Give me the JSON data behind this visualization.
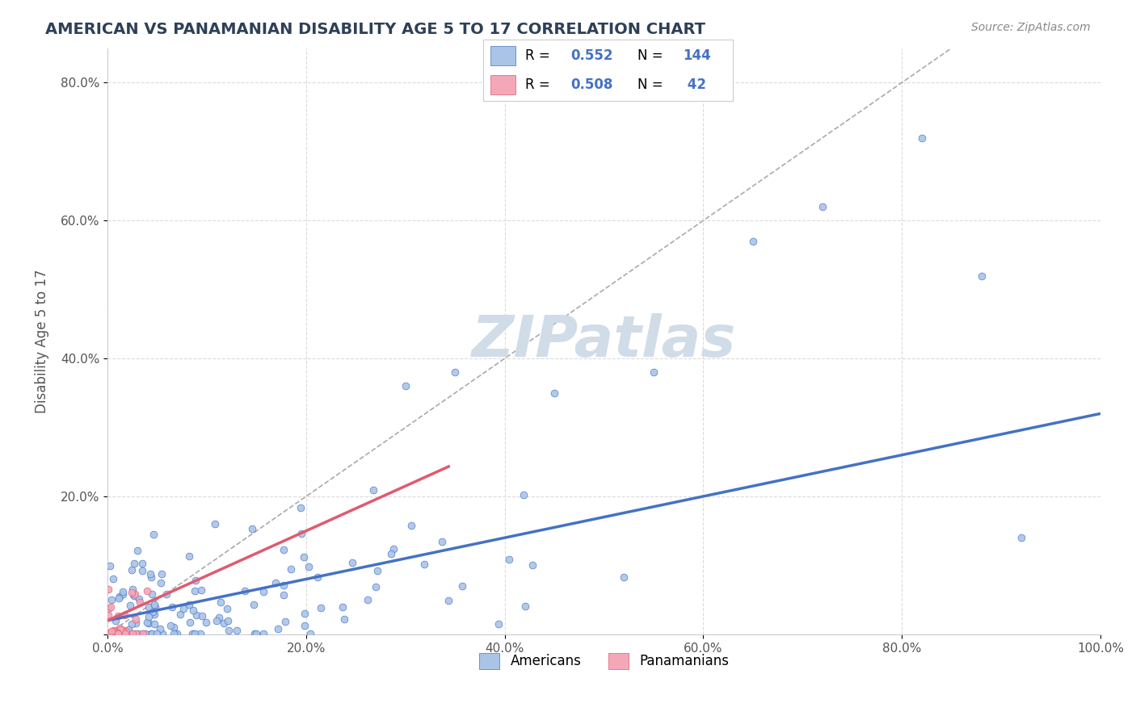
{
  "title": "AMERICAN VS PANAMANIAN DISABILITY AGE 5 TO 17 CORRELATION CHART",
  "source_text": "Source: ZipAtlas.com",
  "xlabel": "",
  "ylabel": "Disability Age 5 to 17",
  "xlim": [
    0,
    1.0
  ],
  "ylim": [
    0,
    0.85
  ],
  "xticks": [
    0,
    0.2,
    0.4,
    0.6,
    0.8,
    1.0
  ],
  "xticklabels": [
    "0.0%",
    "20.0%",
    "40.0%",
    "60.0%",
    "80.0%",
    "100.0%"
  ],
  "yticks": [
    0,
    0.2,
    0.4,
    0.6,
    0.8
  ],
  "yticklabels": [
    "",
    "20.0%",
    "40.0%",
    "60.0%",
    "80.0%"
  ],
  "american_R": 0.552,
  "american_N": 144,
  "panamanian_R": 0.508,
  "panamanian_N": 42,
  "american_color": "#aac4e8",
  "american_line_color": "#4472c4",
  "panamanian_color": "#f4a7b9",
  "panamanian_line_color": "#e05a6e",
  "legend_R_color": "#4472c4",
  "watermark_color": "#d0dce8",
  "background_color": "#ffffff",
  "grid_color": "#cccccc",
  "title_color": "#2e4057",
  "tick_color": "#555555"
}
